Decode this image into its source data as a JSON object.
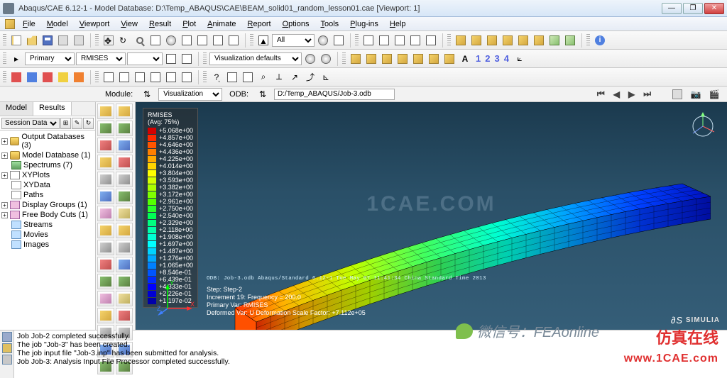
{
  "window": {
    "title": "Abaqus/CAE 6.12-1 - Model Database: D:\\Temp_ABAQUS\\CAE\\BEAM_solid01_random_lesson01.cae [Viewport: 1]"
  },
  "menu": [
    "File",
    "Model",
    "Viewport",
    "View",
    "Result",
    "Plot",
    "Animate",
    "Report",
    "Options",
    "Tools",
    "Plug-ins",
    "Help"
  ],
  "toolbar2": {
    "primary_label": "Primary",
    "rmises_label": "RMISES",
    "vizdef_label": "Visualization defaults"
  },
  "toolbar3": {
    "all_label": "All"
  },
  "numbers": [
    "1",
    "2",
    "3",
    "4"
  ],
  "module_row": {
    "module_label": "Module:",
    "module_value": "Visualization",
    "odb_label": "ODB:",
    "odb_value": "D:/Temp_ABAQUS/Job-3.odb"
  },
  "tabs": {
    "model": "Model",
    "results": "Results"
  },
  "session_label": "Session Data",
  "tree": [
    {
      "toggle": "+",
      "icon": "db",
      "label": "Output Databases (3)"
    },
    {
      "toggle": "+",
      "icon": "db",
      "label": "Model Database (1)"
    },
    {
      "toggle": "",
      "icon": "sp",
      "label": "Spectrums (7)"
    },
    {
      "toggle": "+",
      "icon": "xy",
      "label": "XYPlots"
    },
    {
      "toggle": "",
      "icon": "xy",
      "label": "XYData"
    },
    {
      "toggle": "",
      "icon": "xy",
      "label": "Paths"
    },
    {
      "toggle": "+",
      "icon": "gr",
      "label": "Display Groups (1)"
    },
    {
      "toggle": "+",
      "icon": "gr",
      "label": "Free Body Cuts (1)"
    },
    {
      "toggle": "",
      "icon": "fl",
      "label": "Streams"
    },
    {
      "toggle": "",
      "icon": "fl",
      "label": "Movies"
    },
    {
      "toggle": "",
      "icon": "fl",
      "label": "Images"
    }
  ],
  "legend": {
    "title": "RMISES",
    "subtitle": "(Avg: 75%)",
    "values": [
      "+5.068e+00",
      "+4.857e+00",
      "+4.646e+00",
      "+4.436e+00",
      "+4.225e+00",
      "+4.014e+00",
      "+3.804e+00",
      "+3.593e+00",
      "+3.382e+00",
      "+3.172e+00",
      "+2.961e+00",
      "+2.750e+00",
      "+2.540e+00",
      "+2.329e+00",
      "+2.118e+00",
      "+1.908e+00",
      "+1.697e+00",
      "+1.487e+00",
      "+1.276e+00",
      "+1.065e+00",
      "+8.546e-01",
      "+6.439e-01",
      "+4.333e-01",
      "+2.226e-01",
      "+1.197e-02"
    ],
    "colors": [
      "#d40000",
      "#ff2a00",
      "#ff5500",
      "#ff7f00",
      "#ffaa00",
      "#ffd400",
      "#ffff00",
      "#d4ff00",
      "#aaff00",
      "#7fff00",
      "#55ff00",
      "#2aff2a",
      "#00ff55",
      "#00ff80",
      "#00ffaa",
      "#00ffd4",
      "#00ffff",
      "#00d4ff",
      "#00aaff",
      "#0080ff",
      "#0055ff",
      "#002aff",
      "#0000ff",
      "#0000d4",
      "#0000aa"
    ]
  },
  "vp_small": "ODB: Job-3.odb    Abaqus/Standard 6.12-1    Tue May 07 11:41:34 China Standard Time 2013",
  "vp_info": {
    "l1": "Step: Step-2",
    "l2": "Increment    19: Frequency =    200.0",
    "l3": "Primary Var: RMISES",
    "l4": "Deformed Var: U   Deformation Scale Factor: +7.112e+05"
  },
  "triad": {
    "x": "X",
    "y": "Y",
    "z": "Z"
  },
  "simulia": "SIMULIA",
  "messages": [
    "Job Job-2 completed successfully.",
    "The job \"Job-3\" has been created.",
    "The job input file \"Job-3.inp\" has been submitted for analysis.",
    "Job Job-3: Analysis Input File Processor completed successfully."
  ],
  "overlay": {
    "wechat": "微信号：FEAonline",
    "cn": "仿真在线",
    "url": "www.1CAE.com"
  },
  "watermark": "1CAE.COM"
}
